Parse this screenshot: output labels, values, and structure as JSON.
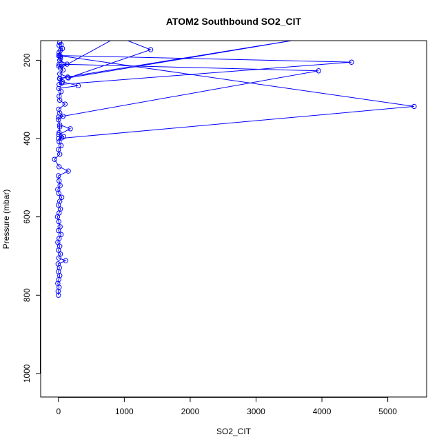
{
  "chart_data": {
    "type": "line",
    "title": "ATOM2 Southbound SO2_CIT",
    "xlabel": "SO2_CIT",
    "ylabel": "Pressure (mbar)",
    "xlim": [
      -270,
      5590
    ],
    "ylim": [
      150,
      1060
    ],
    "y_reversed": true,
    "xticks": [
      0,
      1000,
      2000,
      3000,
      4000,
      5000
    ],
    "yticks": [
      200,
      400,
      600,
      800,
      1000
    ],
    "series_color": "#0000ff",
    "marker": "open-circle",
    "series": [
      {
        "points": [
          [
            0,
            800
          ],
          [
            -5,
            790
          ],
          [
            10,
            780
          ],
          [
            -10,
            770
          ],
          [
            5,
            760
          ],
          [
            20,
            750
          ],
          [
            0,
            740
          ],
          [
            15,
            730
          ],
          [
            -5,
            720
          ],
          [
            110,
            712
          ],
          [
            5,
            705
          ],
          [
            30,
            695
          ],
          [
            0,
            685
          ],
          [
            20,
            675
          ],
          [
            -10,
            665
          ],
          [
            10,
            655
          ],
          [
            40,
            645
          ],
          [
            0,
            635
          ],
          [
            25,
            625
          ],
          [
            5,
            612
          ],
          [
            -15,
            600
          ],
          [
            10,
            590
          ],
          [
            30,
            580
          ],
          [
            0,
            570
          ],
          [
            20,
            560
          ],
          [
            50,
            550
          ],
          [
            5,
            540
          ],
          [
            -10,
            530
          ],
          [
            25,
            520
          ],
          [
            10,
            508
          ],
          [
            0,
            495
          ],
          [
            150,
            483
          ],
          [
            10,
            472
          ],
          [
            -60,
            453
          ],
          [
            20,
            440
          ],
          [
            0,
            428
          ],
          [
            40,
            418
          ],
          [
            10,
            408
          ],
          [
            50,
            398
          ],
          [
            5,
            390
          ],
          [
            180,
            375
          ],
          [
            20,
            365
          ],
          [
            0,
            352
          ],
          [
            70,
            343
          ],
          [
            20,
            335
          ],
          [
            5,
            325
          ],
          [
            100,
            312
          ],
          [
            20,
            302
          ],
          [
            10,
            292
          ],
          [
            40,
            280
          ],
          [
            5,
            272
          ],
          [
            300,
            265
          ],
          [
            60,
            255
          ],
          [
            20,
            248
          ],
          [
            140,
            243
          ],
          [
            20,
            235
          ],
          [
            70,
            225
          ],
          [
            5,
            215
          ],
          [
            130,
            210
          ],
          [
            20,
            200
          ],
          [
            30,
            190
          ],
          [
            10,
            180
          ],
          [
            60,
            170
          ],
          [
            40,
            160
          ],
          [
            20,
            155
          ],
          [
            10,
            162
          ],
          [
            30,
            175
          ],
          [
            0,
            188
          ],
          [
            5400,
            318
          ],
          [
            0,
            400
          ],
          [
            80,
            395
          ],
          [
            10,
            385
          ],
          [
            20,
            370
          ],
          [
            0,
            345
          ],
          [
            3950,
            227
          ],
          [
            40,
            210
          ],
          [
            30,
            195
          ],
          [
            20,
            188
          ],
          [
            4450,
            205
          ],
          [
            10,
            262
          ],
          [
            50,
            258
          ],
          [
            20,
            246
          ],
          [
            3900,
            140
          ],
          [
            150,
            245
          ],
          [
            1400,
            173
          ],
          [
            900,
            140
          ],
          [
            30,
            220
          ],
          [
            10,
            210
          ]
        ]
      }
    ]
  }
}
